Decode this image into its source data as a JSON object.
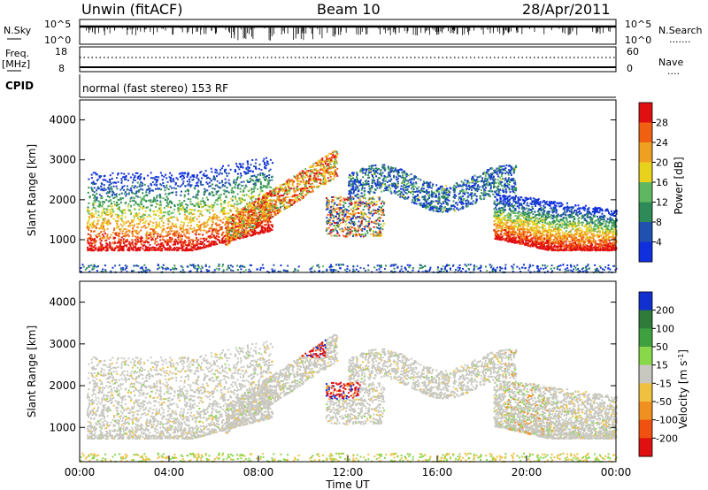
{
  "header": {
    "station": "Unwin (fitACF)",
    "beam": "Beam 10",
    "date": "28/Apr/2011"
  },
  "panels": {
    "nsky": {
      "left_label": "N.Sky",
      "left_ticks": [
        "10^5",
        "10^0"
      ],
      "right_ticks": [
        "10^5",
        "10^0"
      ],
      "right_label": "N.Search",
      "right_dots": "......."
    },
    "freq": {
      "left_label_1": "Freq.",
      "left_label_2": "[MHz]",
      "left_ticks": [
        "18",
        "8"
      ],
      "right_ticks": [
        "60",
        "0"
      ],
      "right_label": "Nave",
      "right_dots": "...."
    },
    "cpid": {
      "label": "CPID",
      "text": "normal (fast stereo) 153 RF"
    }
  },
  "chart_data": [
    {
      "type": "heatmap",
      "name": "power",
      "xlabel": "",
      "ylabel": "Slant Range [km]",
      "xlim": [
        0,
        24
      ],
      "ylim": [
        180,
        4500
      ],
      "y_ticks": [
        "1000",
        "2000",
        "3000",
        "4000"
      ],
      "colorbar": {
        "label": "Power [dB]",
        "ticks": [
          "4",
          "8",
          "12",
          "16",
          "20",
          "24",
          "28"
        ],
        "colors": [
          "#1030e0",
          "#2050b0",
          "#2e8b57",
          "#5fb85f",
          "#e8d21c",
          "#f0a020",
          "#f06010",
          "#e01010"
        ]
      },
      "regions": [
        {
          "x": [
            0.3,
            8.5
          ],
          "y": [
            750,
            2700
          ],
          "level": "mixed"
        },
        {
          "x": [
            6.5,
            11.5
          ],
          "y": [
            1200,
            3300
          ],
          "level": "mixed"
        },
        {
          "x": [
            11.0,
            13.5
          ],
          "y": [
            1100,
            2100
          ],
          "level": "mixed"
        },
        {
          "x": [
            12.0,
            19.5
          ],
          "y": [
            1800,
            2800
          ],
          "level": "weak"
        },
        {
          "x": [
            18.5,
            24.0
          ],
          "y": [
            750,
            2200
          ],
          "level": "strong"
        }
      ]
    },
    {
      "type": "heatmap",
      "name": "velocity",
      "xlabel": "Time UT",
      "ylabel": "Slant Range [km]",
      "xlim": [
        0,
        24
      ],
      "ylim": [
        180,
        4500
      ],
      "x_ticks": [
        "00:00",
        "04:00",
        "08:00",
        "12:00",
        "16:00",
        "20:00",
        "00:00"
      ],
      "y_ticks": [
        "1000",
        "2000",
        "3000",
        "4000"
      ],
      "colorbar": {
        "label": "Velocity [m s^-1]",
        "ticks": [
          "200",
          "100",
          "50",
          "15",
          "-15",
          "-50",
          "-100",
          "-200"
        ],
        "colors": [
          "#1030d0",
          "#2e7b3a",
          "#3fa03f",
          "#88d84a",
          "#c8c8c0",
          "#f0c040",
          "#f09020",
          "#f05010",
          "#e01010"
        ]
      }
    }
  ]
}
